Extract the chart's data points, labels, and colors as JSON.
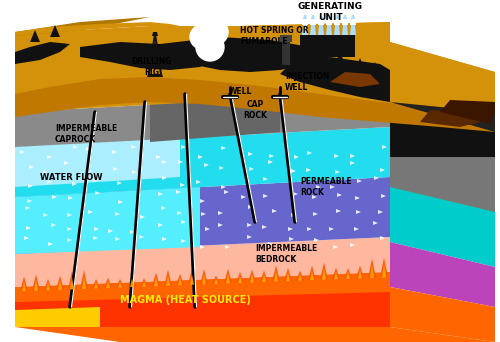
{
  "background": "#ffffff",
  "figsize": [
    5.0,
    3.42
  ],
  "dpi": 100,
  "labels": {
    "generating_unit": "GENERATING\nUNIT",
    "drilling_rig": "DRILLING\nRIG",
    "hot_spring": "HOT SPRING OR\nFUMAROLE",
    "well": "WELL",
    "cap_rock": "CAP\nROCK",
    "injection_well": "INJECTION\nWELL",
    "impermeable_caprock": "IMPERMEABLE\nCAPROCK",
    "water_flow": "WATER FLOW",
    "permeable_rock": "PERMEABLE\nROCK",
    "impermeable_bedrock": "IMPERMEABLE\nBEDROCK",
    "magma": "MAGMA (HEAT SOURCE)"
  },
  "colors": {
    "ground_orange": "#d4920a",
    "ground_dark": "#b07800",
    "caprock_gray": "#8a8a8a",
    "caprock_dark": "#666666",
    "water_cyan": "#22ddee",
    "water_cyan2": "#55eeff",
    "permeable_blue": "#6666cc",
    "permeable_light": "#8888dd",
    "bedrock_pink": "#ffb8a0",
    "magma_red": "#ff3300",
    "magma_orange": "#ff6600",
    "magma_yellow": "#ffcc00",
    "black": "#111111",
    "dark_rock": "#111111",
    "brown_rock": "#7a3800",
    "dark_brown": "#3a1500",
    "white": "#ffffff",
    "right_cyan": "#00cccc",
    "right_purple": "#bb44bb",
    "right_orange": "#ff6600",
    "right_gray": "#777777",
    "right_ground": "#b07000"
  }
}
